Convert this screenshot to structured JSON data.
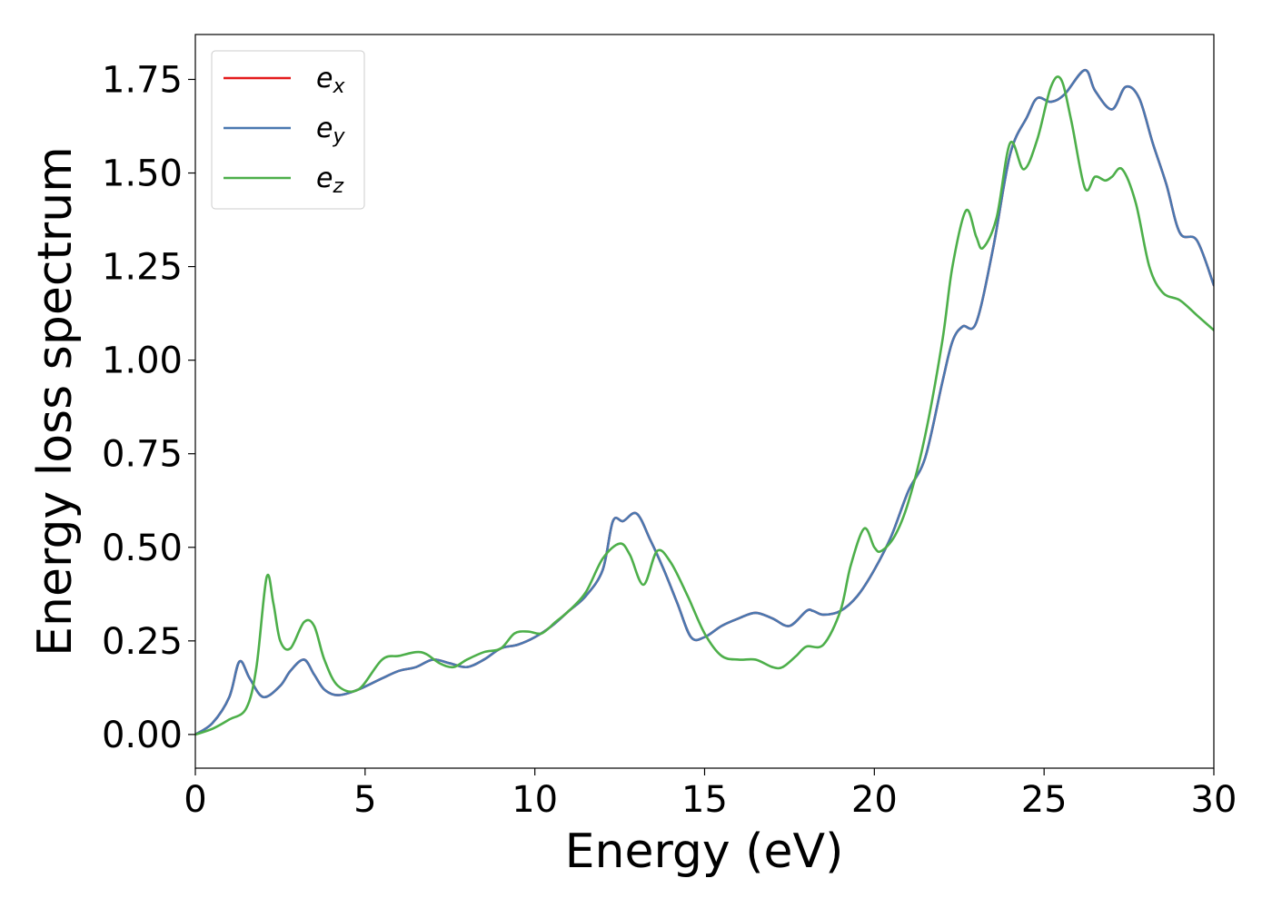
{
  "chart_data": {
    "type": "line",
    "title": "",
    "xlabel": "Energy (eV)",
    "ylabel": "Energy loss spectrum",
    "xlim": [
      0,
      30
    ],
    "ylim": [
      -0.09,
      1.87
    ],
    "xticks": [
      0,
      5,
      10,
      15,
      20,
      25,
      30
    ],
    "yticks": [
      0.0,
      0.25,
      0.5,
      0.75,
      1.0,
      1.25,
      1.5,
      1.75
    ],
    "xtick_labels": [
      "0",
      "5",
      "10",
      "15",
      "20",
      "25",
      "30"
    ],
    "ytick_labels": [
      "0.00",
      "0.25",
      "0.50",
      "0.75",
      "1.00",
      "1.25",
      "1.50",
      "1.75"
    ],
    "grid": false,
    "legend_position": "top-left",
    "series": [
      {
        "name": "e_x",
        "label_base": "e",
        "label_sub": "x",
        "color": "#e41a1c",
        "x": [
          0,
          0.5,
          1.0,
          1.3,
          1.6,
          2.0,
          2.5,
          2.8,
          3.2,
          3.5,
          3.8,
          4.2,
          4.8,
          5.5,
          6.0,
          6.5,
          7.0,
          7.5,
          8.0,
          8.5,
          9.0,
          9.5,
          10.0,
          10.5,
          11.0,
          11.5,
          12.0,
          12.3,
          12.6,
          13.0,
          13.4,
          13.8,
          14.2,
          14.6,
          15.0,
          15.5,
          16.0,
          16.5,
          17.0,
          17.5,
          18.0,
          18.2,
          18.5,
          19.0,
          19.5,
          20.0,
          20.5,
          21.0,
          21.5,
          22.0,
          22.3,
          22.6,
          23.0,
          23.5,
          24.0,
          24.5,
          24.8,
          25.2,
          25.6,
          26.2,
          26.5,
          27.0,
          27.4,
          27.8,
          28.2,
          28.6,
          29.0,
          29.5,
          30.0
        ],
        "y": [
          0.0,
          0.03,
          0.1,
          0.195,
          0.15,
          0.1,
          0.13,
          0.17,
          0.2,
          0.16,
          0.12,
          0.105,
          0.12,
          0.15,
          0.17,
          0.18,
          0.2,
          0.19,
          0.18,
          0.2,
          0.23,
          0.24,
          0.26,
          0.29,
          0.33,
          0.37,
          0.44,
          0.57,
          0.57,
          0.59,
          0.52,
          0.44,
          0.35,
          0.26,
          0.26,
          0.29,
          0.31,
          0.325,
          0.31,
          0.29,
          0.33,
          0.33,
          0.32,
          0.33,
          0.37,
          0.44,
          0.53,
          0.65,
          0.74,
          0.94,
          1.05,
          1.09,
          1.1,
          1.3,
          1.55,
          1.65,
          1.7,
          1.69,
          1.71,
          1.775,
          1.72,
          1.67,
          1.73,
          1.7,
          1.58,
          1.47,
          1.34,
          1.32,
          1.2
        ]
      },
      {
        "name": "e_y",
        "label_base": "e",
        "label_sub": "y",
        "color": "#4a78b0",
        "x": [
          0,
          0.5,
          1.0,
          1.3,
          1.6,
          2.0,
          2.5,
          2.8,
          3.2,
          3.5,
          3.8,
          4.2,
          4.8,
          5.5,
          6.0,
          6.5,
          7.0,
          7.5,
          8.0,
          8.5,
          9.0,
          9.5,
          10.0,
          10.5,
          11.0,
          11.5,
          12.0,
          12.3,
          12.6,
          13.0,
          13.4,
          13.8,
          14.2,
          14.6,
          15.0,
          15.5,
          16.0,
          16.5,
          17.0,
          17.5,
          18.0,
          18.2,
          18.5,
          19.0,
          19.5,
          20.0,
          20.5,
          21.0,
          21.5,
          22.0,
          22.3,
          22.6,
          23.0,
          23.5,
          24.0,
          24.5,
          24.8,
          25.2,
          25.6,
          26.2,
          26.5,
          27.0,
          27.4,
          27.8,
          28.2,
          28.6,
          29.0,
          29.5,
          30.0
        ],
        "y": [
          0.0,
          0.03,
          0.1,
          0.195,
          0.15,
          0.1,
          0.13,
          0.17,
          0.2,
          0.16,
          0.12,
          0.105,
          0.12,
          0.15,
          0.17,
          0.18,
          0.2,
          0.19,
          0.18,
          0.2,
          0.23,
          0.24,
          0.26,
          0.29,
          0.33,
          0.37,
          0.44,
          0.57,
          0.57,
          0.59,
          0.52,
          0.44,
          0.35,
          0.26,
          0.26,
          0.29,
          0.31,
          0.325,
          0.31,
          0.29,
          0.33,
          0.33,
          0.32,
          0.33,
          0.37,
          0.44,
          0.53,
          0.65,
          0.74,
          0.94,
          1.05,
          1.09,
          1.1,
          1.3,
          1.55,
          1.65,
          1.7,
          1.69,
          1.71,
          1.775,
          1.72,
          1.67,
          1.73,
          1.7,
          1.58,
          1.47,
          1.34,
          1.32,
          1.2
        ]
      },
      {
        "name": "e_z",
        "label_base": "e",
        "label_sub": "z",
        "color": "#4daf4a",
        "x": [
          0,
          0.5,
          1.0,
          1.5,
          1.8,
          2.1,
          2.3,
          2.5,
          2.8,
          3.2,
          3.5,
          3.8,
          4.2,
          4.8,
          5.5,
          6.0,
          6.5,
          6.8,
          7.2,
          7.6,
          8.0,
          8.5,
          9.0,
          9.4,
          9.8,
          10.2,
          10.6,
          11.0,
          11.5,
          12.0,
          12.5,
          12.8,
          13.2,
          13.6,
          14.0,
          14.5,
          15.0,
          15.5,
          16.0,
          16.5,
          17.0,
          17.3,
          17.7,
          18.0,
          18.5,
          19.0,
          19.3,
          19.7,
          20.0,
          20.2,
          20.6,
          21.0,
          21.5,
          22.0,
          22.3,
          22.7,
          23.0,
          23.2,
          23.6,
          24.0,
          24.4,
          24.8,
          25.2,
          25.5,
          25.8,
          26.2,
          26.5,
          26.8,
          27.0,
          27.3,
          27.7,
          28.1,
          28.5,
          29.0,
          29.5,
          30.0
        ],
        "y": [
          0.0,
          0.015,
          0.04,
          0.07,
          0.18,
          0.42,
          0.35,
          0.25,
          0.23,
          0.3,
          0.29,
          0.2,
          0.13,
          0.12,
          0.2,
          0.21,
          0.22,
          0.215,
          0.19,
          0.18,
          0.2,
          0.22,
          0.23,
          0.27,
          0.275,
          0.27,
          0.3,
          0.33,
          0.38,
          0.47,
          0.51,
          0.48,
          0.4,
          0.49,
          0.46,
          0.37,
          0.27,
          0.21,
          0.2,
          0.2,
          0.18,
          0.18,
          0.21,
          0.235,
          0.24,
          0.33,
          0.45,
          0.55,
          0.5,
          0.49,
          0.53,
          0.62,
          0.8,
          1.05,
          1.25,
          1.4,
          1.33,
          1.3,
          1.38,
          1.58,
          1.51,
          1.59,
          1.73,
          1.75,
          1.64,
          1.46,
          1.49,
          1.48,
          1.49,
          1.51,
          1.42,
          1.25,
          1.18,
          1.16,
          1.12,
          1.08
        ]
      }
    ]
  }
}
